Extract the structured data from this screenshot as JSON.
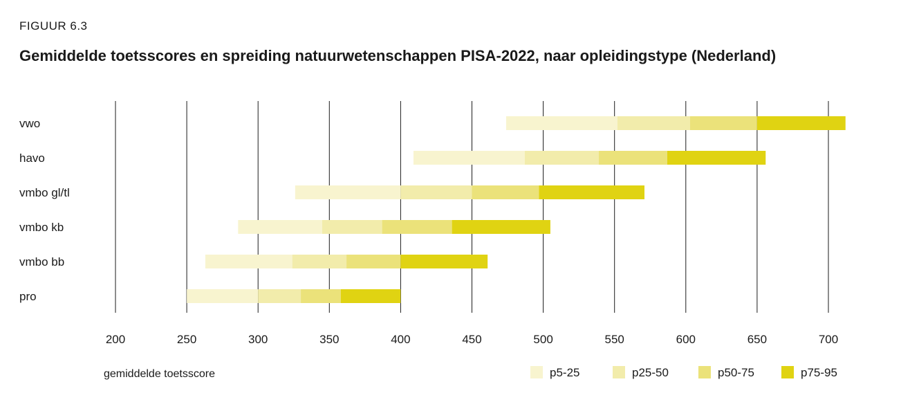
{
  "figure_label": "FIGUUR 6.3",
  "chart_data": {
    "type": "bar",
    "subtype": "stacked-range-horizontal",
    "title": "Gemiddelde toetsscores en spreiding natuurwetenschappen PISA-2022, naar opleidingstype (Nederland)",
    "xlabel": "gemiddelde toetsscore",
    "xlim": [
      200,
      700
    ],
    "xticks": [
      200,
      250,
      300,
      350,
      400,
      450,
      500,
      550,
      600,
      650,
      700
    ],
    "grid": true,
    "legend_placement": "bottom-right",
    "segments": [
      {
        "name": "p5-25",
        "color": "#f8f4cf"
      },
      {
        "name": "p25-50",
        "color": "#f2ecab"
      },
      {
        "name": "p50-75",
        "color": "#ebe27a"
      },
      {
        "name": "p75-95",
        "color": "#e0d312"
      }
    ],
    "categories": [
      "vwo",
      "havo",
      "vmbo gl/tl",
      "vmbo kb",
      "vmbo bb",
      "pro"
    ],
    "rows": [
      {
        "label": "vwo",
        "percentiles": [
          474,
          552,
          603,
          650,
          712
        ]
      },
      {
        "label": "havo",
        "percentiles": [
          409,
          487,
          539,
          587,
          656
        ]
      },
      {
        "label": "vmbo gl/tl",
        "percentiles": [
          326,
          400,
          450,
          497,
          571
        ]
      },
      {
        "label": "vmbo kb",
        "percentiles": [
          286,
          345,
          387,
          436,
          505
        ]
      },
      {
        "label": "vmbo bb",
        "percentiles": [
          263,
          324,
          362,
          400,
          461
        ]
      },
      {
        "label": "pro",
        "percentiles": [
          250,
          300,
          330,
          358,
          400
        ]
      }
    ]
  }
}
